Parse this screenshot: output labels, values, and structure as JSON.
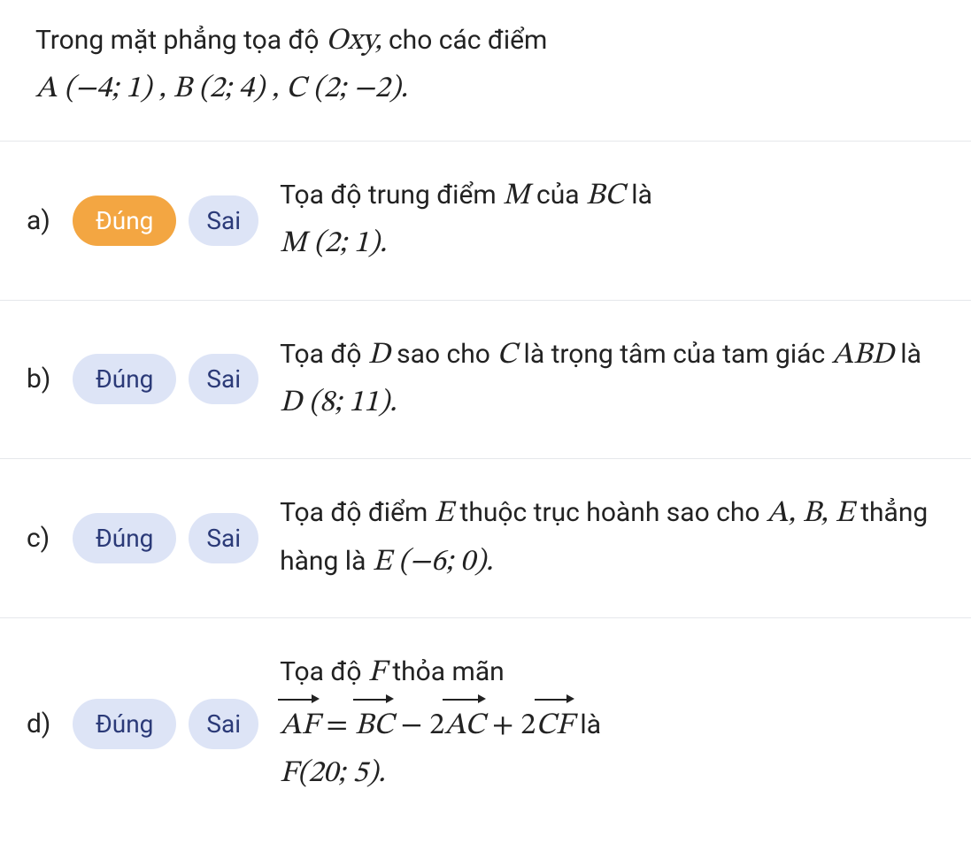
{
  "colors": {
    "background": "#ffffff",
    "text": "#222222",
    "pill_unselected_bg": "#dde4f6",
    "pill_unselected_text": "#2b3a78",
    "pill_selected_bg": "#f3a642",
    "pill_selected_text": "#ffffff",
    "divider": "#e5e7eb"
  },
  "fontsize": {
    "body": 30,
    "math": 34
  },
  "header": {
    "prefix": "Trong mặt phẳng tọa độ ",
    "oxy": "Oxy,",
    "mid": " cho các điểm",
    "coords": "A (−4; 1) , B (2; 4) , C (2; −2)."
  },
  "labels": {
    "true": "Đúng",
    "false": "Sai"
  },
  "items": [
    {
      "letter": "a)",
      "selected": "true",
      "text1": "Tọa độ trung điểm ",
      "m1": "M",
      "text2": " của ",
      "m2": "BC",
      "text3": " là ",
      "m3": "M (2; 1)."
    },
    {
      "letter": "b)",
      "selected": "none",
      "text1": "Tọa độ ",
      "m1": "D",
      "text2": " sao cho ",
      "m2": "C",
      "text3": " là trọng tâm của tam giác ",
      "m3": "ABD",
      "text4": " là ",
      "m4": "D (8; 11)."
    },
    {
      "letter": "c)",
      "selected": "none",
      "text1": "Tọa độ điểm ",
      "m1": "E",
      "text2": " thuộc trục hoành sao cho ",
      "m2": "A, B, E",
      "text3": " thẳng hàng là ",
      "m3": "E (−6; 0)."
    },
    {
      "letter": "d)",
      "selected": "none",
      "text1": "Tọa độ ",
      "m1": "F",
      "text2": " thỏa mãn ",
      "vec1": "AF",
      "eq1": " = ",
      "vec2": "BC",
      "eq2": " − 2",
      "vec3": "AC",
      "eq3": " + 2",
      "vec4": "CF",
      "text3": " là ",
      "m3": "F(20; 5)."
    }
  ]
}
